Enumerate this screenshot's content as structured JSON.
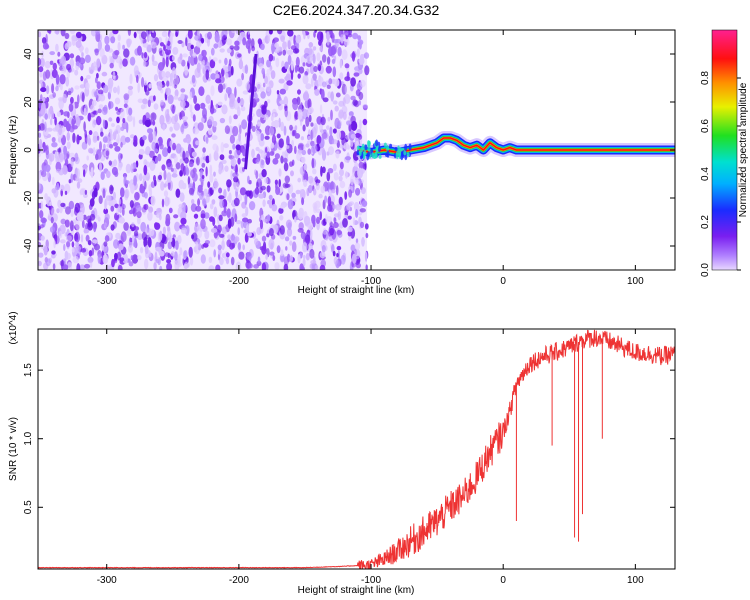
{
  "title": "C2E6.2024.347.20.34.G32",
  "chart_data": [
    {
      "type": "heatmap",
      "name": "spectrogram",
      "xlabel": "Height of straight line (km)",
      "ylabel": "Frequency (Hz)",
      "xlim": [
        -352,
        130
      ],
      "ylim": [
        -50,
        50
      ],
      "x_ticks": [
        -300,
        -200,
        -100,
        0,
        100
      ],
      "y_ticks": [
        -40,
        -20,
        0,
        20,
        40
      ],
      "colorbar": {
        "label": "Normalized spectral amplitude",
        "range": [
          0,
          1
        ],
        "ticks": [
          "0.0",
          "0.2",
          "0.4",
          "0.6",
          "0.8"
        ],
        "colors": [
          "#e8d8ff",
          "#7a1ff0",
          "#1a2cff",
          "#00e0e0",
          "#20e020",
          "#f0f000",
          "#ff9000",
          "#ff1010",
          "#ff2090"
        ]
      },
      "noise_region_x": [
        -352,
        -103
      ],
      "track": {
        "x": [
          -110,
          -100,
          -90,
          -80,
          -70,
          -60,
          -50,
          -45,
          -40,
          -35,
          -30,
          -25,
          -20,
          -15,
          -10,
          -5,
          0,
          5,
          10,
          20,
          40,
          60,
          80,
          100,
          130
        ],
        "y": [
          0,
          -1,
          0,
          -1,
          0,
          1,
          3,
          5,
          5,
          4,
          2,
          1,
          2,
          0,
          3,
          1,
          0,
          1,
          0,
          0,
          0,
          0,
          0,
          0,
          0
        ]
      },
      "trace": {
        "x": [
          -195,
          -187
        ],
        "y": [
          -8,
          40
        ]
      }
    },
    {
      "type": "line",
      "name": "snr",
      "xlabel": "Height of straight line (km)",
      "ylabel": "SNR (10 * v/v)",
      "yscale_note": "(x10^4)",
      "xlim": [
        -352,
        130
      ],
      "ylim": [
        0.05,
        1.8
      ],
      "x_ticks": [
        -300,
        -200,
        -100,
        0,
        100
      ],
      "y_ticks": [
        0.5,
        1.0,
        1.5
      ],
      "y_tick_labels": [
        "0.5",
        "1.0",
        "1.5"
      ],
      "color": "#ee3333",
      "series": [
        {
          "x": [
            -352,
            -300,
            -250,
            -200,
            -150,
            -120,
            -100,
            -90,
            -80,
            -70,
            -60,
            -50,
            -40,
            -30,
            -20,
            -10,
            0,
            5,
            10,
            20,
            30,
            40,
            50,
            60,
            70,
            80,
            90,
            100,
            110,
            120,
            130
          ],
          "values": [
            0.06,
            0.06,
            0.06,
            0.06,
            0.06,
            0.07,
            0.08,
            0.12,
            0.18,
            0.25,
            0.32,
            0.4,
            0.5,
            0.58,
            0.72,
            0.9,
            1.05,
            1.2,
            1.4,
            1.55,
            1.6,
            1.63,
            1.67,
            1.72,
            1.74,
            1.71,
            1.67,
            1.63,
            1.62,
            1.6,
            1.62
          ]
        }
      ],
      "dips": [
        {
          "x": 10,
          "y": 0.4
        },
        {
          "x": 54,
          "y": 0.28
        },
        {
          "x": 57,
          "y": 0.25
        },
        {
          "x": 60,
          "y": 0.45
        },
        {
          "x": 37,
          "y": 0.95
        },
        {
          "x": 75,
          "y": 1.0
        }
      ]
    }
  ]
}
